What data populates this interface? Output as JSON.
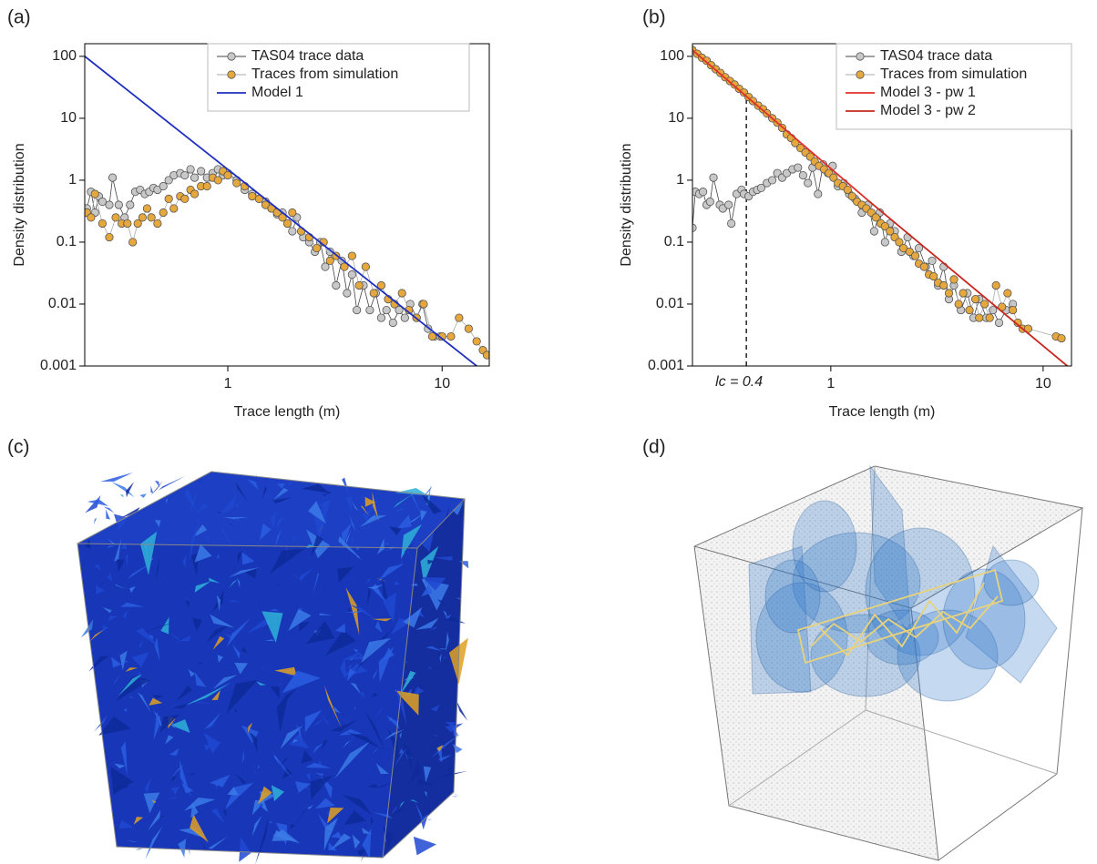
{
  "panel_labels": [
    "(a)",
    "(b)",
    "(c)",
    "(d)"
  ],
  "chart_data": [
    {
      "type": "scatter-line",
      "xscale": "log",
      "yscale": "log",
      "x_label": "Trace length (m)",
      "y_label": "Density distribution",
      "xlim": [
        0.215,
        16.6
      ],
      "ylim": [
        0.001,
        160
      ],
      "xticks": [
        1,
        10
      ],
      "yticks": [
        0.001,
        0.01,
        0.1,
        1,
        10,
        100
      ],
      "series": [
        {
          "name": "TAS04 trace data",
          "color": "#c8c8c8",
          "line_color": "#444444",
          "markers": true,
          "x": [
            0.22,
            0.23,
            0.24,
            0.25,
            0.26,
            0.28,
            0.29,
            0.31,
            0.33,
            0.35,
            0.37,
            0.39,
            0.41,
            0.43,
            0.45,
            0.47,
            0.5,
            0.53,
            0.56,
            0.6,
            0.63,
            0.67,
            0.7,
            0.75,
            0.8,
            0.85,
            0.9,
            0.95,
            1.0,
            1.1,
            1.2,
            1.3,
            1.4,
            1.5,
            1.6,
            1.7,
            1.8,
            1.9,
            2.0,
            2.1,
            2.25,
            2.4,
            2.55,
            2.7,
            2.85,
            3.0,
            3.2,
            3.4,
            3.6,
            3.8,
            4.0,
            4.3,
            4.6,
            4.9,
            5.2,
            5.5,
            5.9,
            6.3,
            6.7,
            7.1,
            7.6,
            8.1,
            8.6,
            9.2,
            9.8
          ],
          "values": [
            0.35,
            0.65,
            0.3,
            0.55,
            0.45,
            0.4,
            1.1,
            0.4,
            0.25,
            0.4,
            0.65,
            0.7,
            0.6,
            0.65,
            0.75,
            0.7,
            0.8,
            1.0,
            1.2,
            1.3,
            1.2,
            1.5,
            1.1,
            1.4,
            1.1,
            1.3,
            1.5,
            1.2,
            1.3,
            1.0,
            0.7,
            0.6,
            0.5,
            0.45,
            0.35,
            0.28,
            0.3,
            0.2,
            0.15,
            0.25,
            0.12,
            0.1,
            0.07,
            0.1,
            0.04,
            0.07,
            0.02,
            0.05,
            0.015,
            0.03,
            0.008,
            0.02,
            0.008,
            0.015,
            0.006,
            0.008,
            0.005,
            0.008,
            0.006,
            0.01,
            0.006,
            0.01,
            0.004,
            0.003,
            0.003
          ]
        },
        {
          "name": "Traces from simulation",
          "color": "#e6a83c",
          "line_color": "#aaaaaa",
          "markers": true,
          "x": [
            0.22,
            0.23,
            0.24,
            0.26,
            0.28,
            0.3,
            0.32,
            0.34,
            0.36,
            0.38,
            0.4,
            0.42,
            0.44,
            0.47,
            0.5,
            0.53,
            0.56,
            0.6,
            0.63,
            0.67,
            0.7,
            0.75,
            0.8,
            0.85,
            0.9,
            0.95,
            1.0,
            1.1,
            1.2,
            1.3,
            1.4,
            1.5,
            1.6,
            1.7,
            1.8,
            1.9,
            2.0,
            2.2,
            2.4,
            2.6,
            2.8,
            3.0,
            3.2,
            3.5,
            3.8,
            4.1,
            4.4,
            4.8,
            5.2,
            5.6,
            6.0,
            6.5,
            7.0,
            7.6,
            8.2,
            9.0,
            10,
            11,
            12,
            13.3,
            14.5,
            15.5,
            16.2
          ],
          "values": [
            0.3,
            0.25,
            0.6,
            0.2,
            0.12,
            0.25,
            0.2,
            0.2,
            0.1,
            0.2,
            0.25,
            0.35,
            0.25,
            0.2,
            0.3,
            0.5,
            0.35,
            0.55,
            0.5,
            0.7,
            0.6,
            0.8,
            0.8,
            1.1,
            1.0,
            1.4,
            1.2,
            0.9,
            0.8,
            0.55,
            0.5,
            0.4,
            0.35,
            0.3,
            0.25,
            0.2,
            0.3,
            0.15,
            0.12,
            0.08,
            0.1,
            0.05,
            0.06,
            0.04,
            0.06,
            0.02,
            0.04,
            0.015,
            0.02,
            0.012,
            0.01,
            0.015,
            0.008,
            0.006,
            0.01,
            0.003,
            0.003,
            0.003,
            0.006,
            0.004,
            0.0025,
            0.0018,
            0.0015
          ]
        },
        {
          "name": "Model 1",
          "color": "#1f2fbf",
          "markers": false,
          "x": [
            0.215,
            14.5
          ],
          "values": [
            100,
            0.001
          ]
        }
      ]
    },
    {
      "type": "scatter-line",
      "xscale": "log",
      "yscale": "log",
      "x_label": "Trace length (m)",
      "y_label": "Density distribution",
      "xlim": [
        0.223,
        13.6
      ],
      "ylim": [
        0.001,
        160
      ],
      "xticks": [
        1,
        10
      ],
      "yticks": [
        0.001,
        0.01,
        0.1,
        1,
        10,
        100
      ],
      "annotation": {
        "text": "lc = 0.4",
        "x": 0.4
      },
      "series": [
        {
          "name": "TAS04 trace data",
          "color": "#c8c8c8",
          "line_color": "#444444",
          "markers": true,
          "x": [
            0.223,
            0.23,
            0.24,
            0.25,
            0.26,
            0.27,
            0.28,
            0.3,
            0.31,
            0.33,
            0.34,
            0.36,
            0.38,
            0.39,
            0.41,
            0.43,
            0.45,
            0.47,
            0.5,
            0.53,
            0.56,
            0.59,
            0.62,
            0.66,
            0.7,
            0.74,
            0.78,
            0.82,
            0.87,
            0.92,
            0.97,
            1.02,
            1.08,
            1.15,
            1.22,
            1.3,
            1.4,
            1.5,
            1.6,
            1.7,
            1.8,
            1.9,
            2.0,
            2.15,
            2.3,
            2.45,
            2.6,
            2.8,
            3.0,
            3.2,
            3.4,
            3.6,
            3.8,
            4.1,
            4.4,
            4.7,
            5.0,
            5.4,
            5.8,
            6.2,
            6.7,
            7.2
          ],
          "values": [
            0.17,
            0.65,
            0.6,
            0.65,
            0.4,
            0.45,
            1.1,
            0.4,
            0.35,
            0.4,
            0.2,
            0.6,
            0.7,
            0.6,
            0.55,
            0.65,
            0.7,
            0.75,
            0.9,
            1.0,
            1.3,
            1.1,
            1.3,
            1.5,
            1.6,
            1.2,
            0.9,
            1.6,
            0.6,
            1.8,
            1.3,
            1.7,
            0.8,
            0.9,
            0.6,
            0.5,
            0.3,
            0.4,
            0.15,
            0.3,
            0.1,
            0.2,
            0.15,
            0.07,
            0.12,
            0.06,
            0.08,
            0.04,
            0.05,
            0.02,
            0.04,
            0.012,
            0.02,
            0.008,
            0.015,
            0.006,
            0.012,
            0.006,
            0.008,
            0.005,
            0.008,
            0.01
          ]
        },
        {
          "name": "Traces from simulation",
          "color": "#e6a83c",
          "line_color": "#aaaaaa",
          "markers": true,
          "x": [
            0.223,
            0.235,
            0.247,
            0.26,
            0.273,
            0.287,
            0.302,
            0.318,
            0.335,
            0.352,
            0.37,
            0.39,
            0.41,
            0.43,
            0.455,
            0.48,
            0.5,
            0.53,
            0.56,
            0.59,
            0.62,
            0.65,
            0.68,
            0.72,
            0.76,
            0.8,
            0.84,
            0.88,
            0.93,
            0.98,
            1.03,
            1.08,
            1.14,
            1.2,
            1.26,
            1.33,
            1.4,
            1.47,
            1.55,
            1.63,
            1.72,
            1.8,
            1.9,
            2.0,
            2.1,
            2.2,
            2.35,
            2.5,
            2.6,
            2.75,
            2.9,
            3.05,
            3.2,
            3.4,
            3.6,
            3.8,
            4.0,
            4.2,
            4.5,
            4.8,
            5.0,
            5.3,
            5.6,
            6.0,
            6.4,
            6.8,
            7.2,
            7.6,
            8.0,
            8.5,
            11.5,
            12.2
          ],
          "values": [
            126,
            110,
            95,
            85,
            72,
            62,
            54,
            46,
            40,
            35,
            30,
            26,
            22,
            19,
            16,
            14,
            12,
            10,
            8.5,
            7,
            5.5,
            4.8,
            4,
            3.3,
            2.8,
            2.4,
            2,
            1.7,
            1.5,
            1.3,
            1.1,
            0.9,
            0.8,
            0.7,
            0.55,
            0.45,
            0.4,
            0.35,
            0.3,
            0.25,
            0.2,
            0.18,
            0.15,
            0.12,
            0.1,
            0.08,
            0.07,
            0.06,
            0.045,
            0.04,
            0.03,
            0.028,
            0.022,
            0.02,
            0.015,
            0.025,
            0.01,
            0.015,
            0.008,
            0.012,
            0.006,
            0.01,
            0.006,
            0.02,
            0.009,
            0.015,
            0.008,
            0.005,
            0.004,
            0.004,
            0.003,
            0.0028
          ]
        },
        {
          "name": "Model 3 - pw 1",
          "color": "#e0302a",
          "markers": false,
          "x": [
            0.223,
            1.5
          ],
          "values": [
            126,
            0.47
          ]
        },
        {
          "name": "Model 3 - pw 2",
          "color": "#c8281f",
          "markers": false,
          "x": [
            1.5,
            13
          ],
          "values": [
            0.47,
            0.001
          ]
        }
      ]
    }
  ]
}
